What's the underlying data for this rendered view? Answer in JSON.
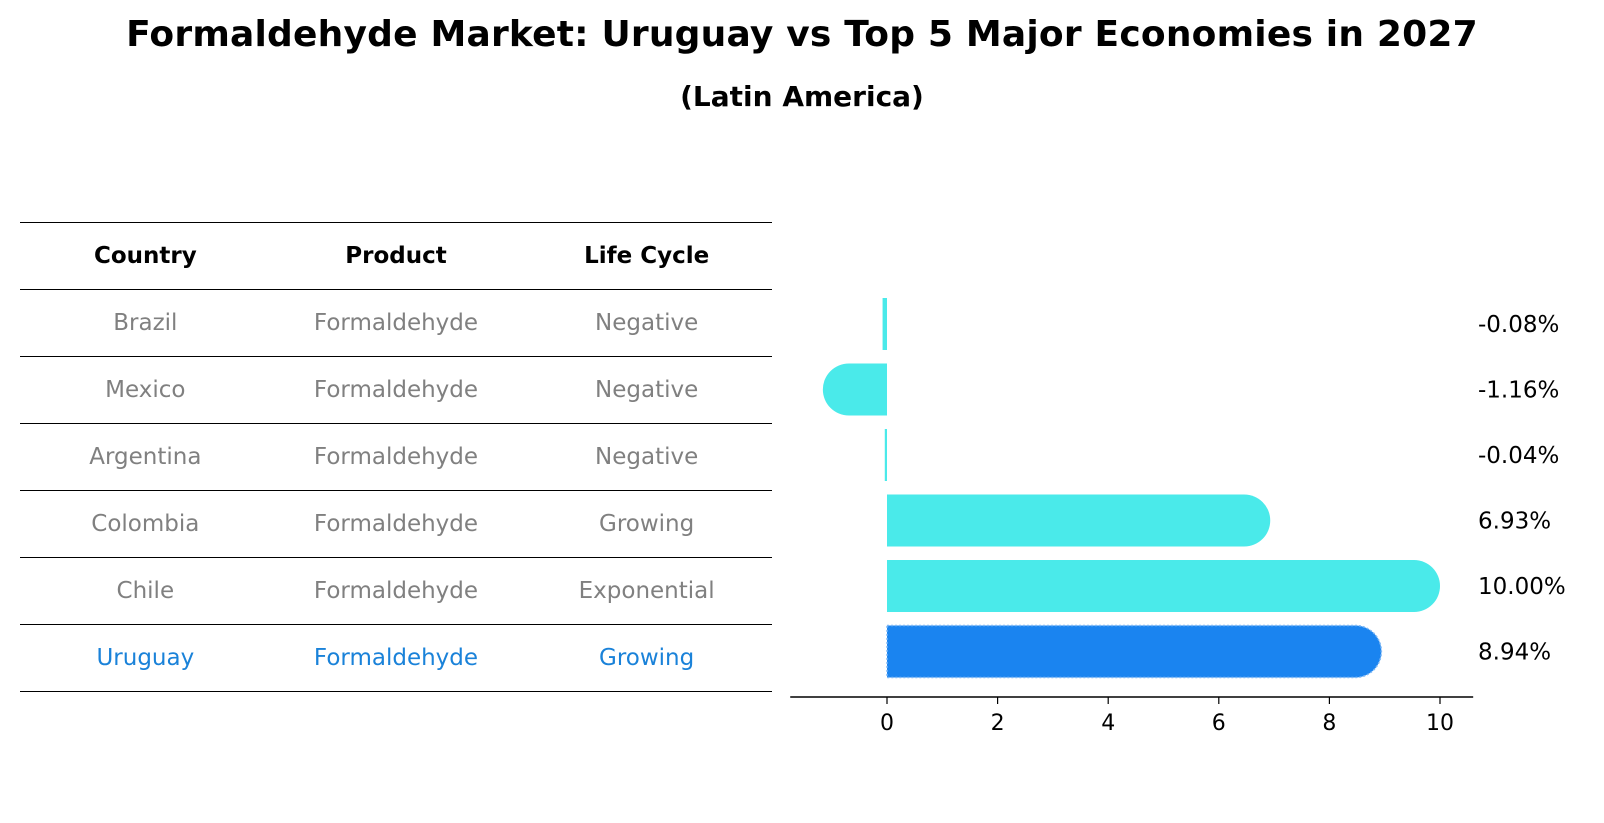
{
  "title": "Formaldehyde Market: Uruguay vs Top 5 Major Economies in 2027",
  "subtitle": "(Latin America)",
  "table": {
    "headers": [
      "Country",
      "Product",
      "Life Cycle"
    ],
    "rows": [
      {
        "country": "Brazil",
        "product": "Formaldehyde",
        "life_cycle": "Negative"
      },
      {
        "country": "Mexico",
        "product": "Formaldehyde",
        "life_cycle": "Negative"
      },
      {
        "country": "Argentina",
        "product": "Formaldehyde",
        "life_cycle": "Negative"
      },
      {
        "country": "Colombia",
        "product": "Formaldehyde",
        "life_cycle": "Growing"
      },
      {
        "country": "Chile",
        "product": "Formaldehyde",
        "life_cycle": "Exponential"
      },
      {
        "country": "Uruguay",
        "product": "Formaldehyde",
        "life_cycle": "Growing"
      }
    ]
  },
  "colors": {
    "bar": "#4aeaea",
    "highlight_bar": "#1a84f0",
    "highlight_text": "#1a82d9",
    "muted_text": "#808080"
  },
  "chart_data": {
    "type": "bar",
    "orientation": "horizontal",
    "categories": [
      "Brazil",
      "Mexico",
      "Argentina",
      "Colombia",
      "Chile",
      "Uruguay"
    ],
    "values": [
      -0.08,
      -1.16,
      -0.04,
      6.93,
      10.0,
      8.94
    ],
    "value_labels": [
      "-0.08%",
      "-1.16%",
      "-0.04%",
      "6.93%",
      "10.00%",
      "8.94%"
    ],
    "highlight_category": "Uruguay",
    "xlim": [
      -1.75,
      10.6
    ],
    "xticks": [
      0,
      2,
      4,
      6,
      8,
      10
    ],
    "grid": false
  }
}
